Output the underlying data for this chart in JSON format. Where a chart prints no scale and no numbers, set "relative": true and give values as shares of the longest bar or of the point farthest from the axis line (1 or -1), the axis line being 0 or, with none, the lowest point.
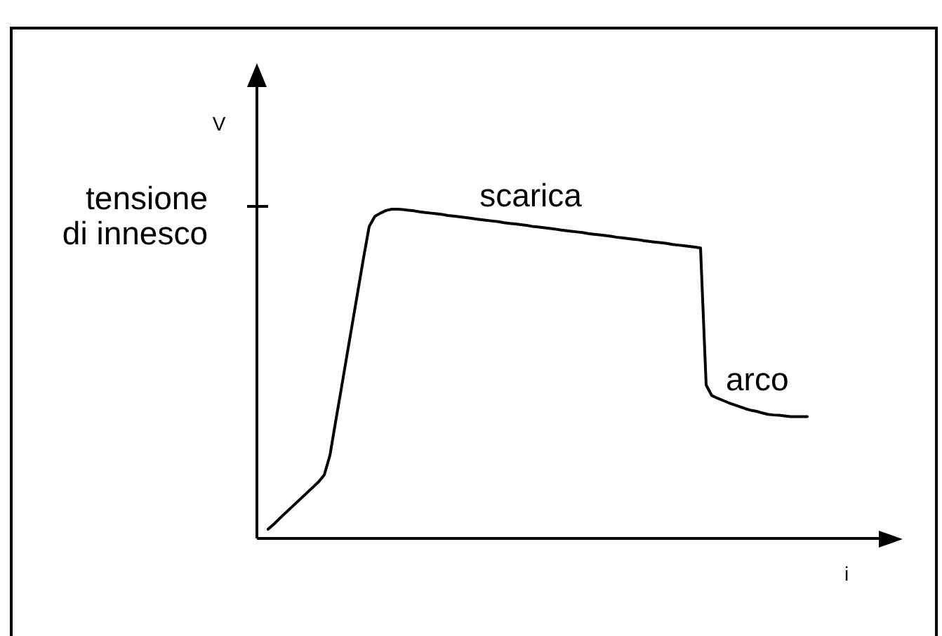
{
  "chart_data": {
    "type": "line",
    "relative": true,
    "xlabel": "i",
    "ylabel": "V",
    "marker": "none",
    "line_style": "solid",
    "categories": [
      null,
      null,
      null,
      null,
      null,
      null,
      null,
      null,
      null,
      null,
      null,
      null,
      null,
      null,
      null,
      null,
      null,
      null,
      null,
      null,
      null,
      null,
      null,
      null,
      null,
      null,
      null,
      null,
      null,
      null,
      null,
      null,
      null,
      null,
      null,
      null,
      null,
      null,
      null,
      null,
      null,
      null,
      null,
      null,
      null,
      null,
      null,
      null,
      null,
      null,
      null,
      null,
      null,
      null,
      null,
      null,
      null,
      null,
      null,
      null,
      null,
      null,
      null,
      null,
      null,
      null,
      null,
      null,
      null,
      null,
      null,
      null,
      null,
      null,
      null,
      null,
      null,
      null,
      null,
      null,
      null,
      null,
      null,
      null,
      null,
      null,
      null,
      null,
      null,
      null,
      null,
      null,
      null,
      null,
      null,
      null,
      null
    ],
    "color": "#000000",
    "values": [
      0.028,
      0.043,
      0.06,
      0.076,
      0.092,
      0.108,
      0.124,
      0.14,
      0.156,
      0.172,
      0.193,
      0.252,
      0.353,
      0.452,
      0.553,
      0.653,
      0.753,
      0.853,
      0.948,
      0.978,
      0.988,
      0.996,
      1,
      1,
      0.999,
      0.997,
      0.995,
      0.992,
      0.99,
      0.988,
      0.986,
      0.984,
      0.981,
      0.979,
      0.977,
      0.975,
      0.973,
      0.97,
      0.968,
      0.966,
      0.964,
      0.962,
      0.959,
      0.957,
      0.955,
      0.953,
      0.951,
      0.948,
      0.946,
      0.944,
      0.942,
      0.94,
      0.937,
      0.935,
      0.933,
      0.931,
      0.929,
      0.926,
      0.924,
      0.922,
      0.92,
      0.918,
      0.915,
      0.913,
      0.911,
      0.909,
      0.907,
      0.904,
      0.902,
      0.9,
      0.898,
      0.896,
      0.893,
      0.891,
      0.889,
      0.887,
      0.885,
      0.882,
      0.466,
      0.434,
      0.426,
      0.419,
      0.412,
      0.406,
      0.4,
      0.394,
      0.389,
      0.386,
      0.381,
      0.377,
      0.375,
      0.374,
      0.372,
      0.37,
      0.37,
      0.37,
      0.37
    ],
    "annotations": [
      "tensione di innesco",
      "scarica",
      "arco"
    ]
  }
}
